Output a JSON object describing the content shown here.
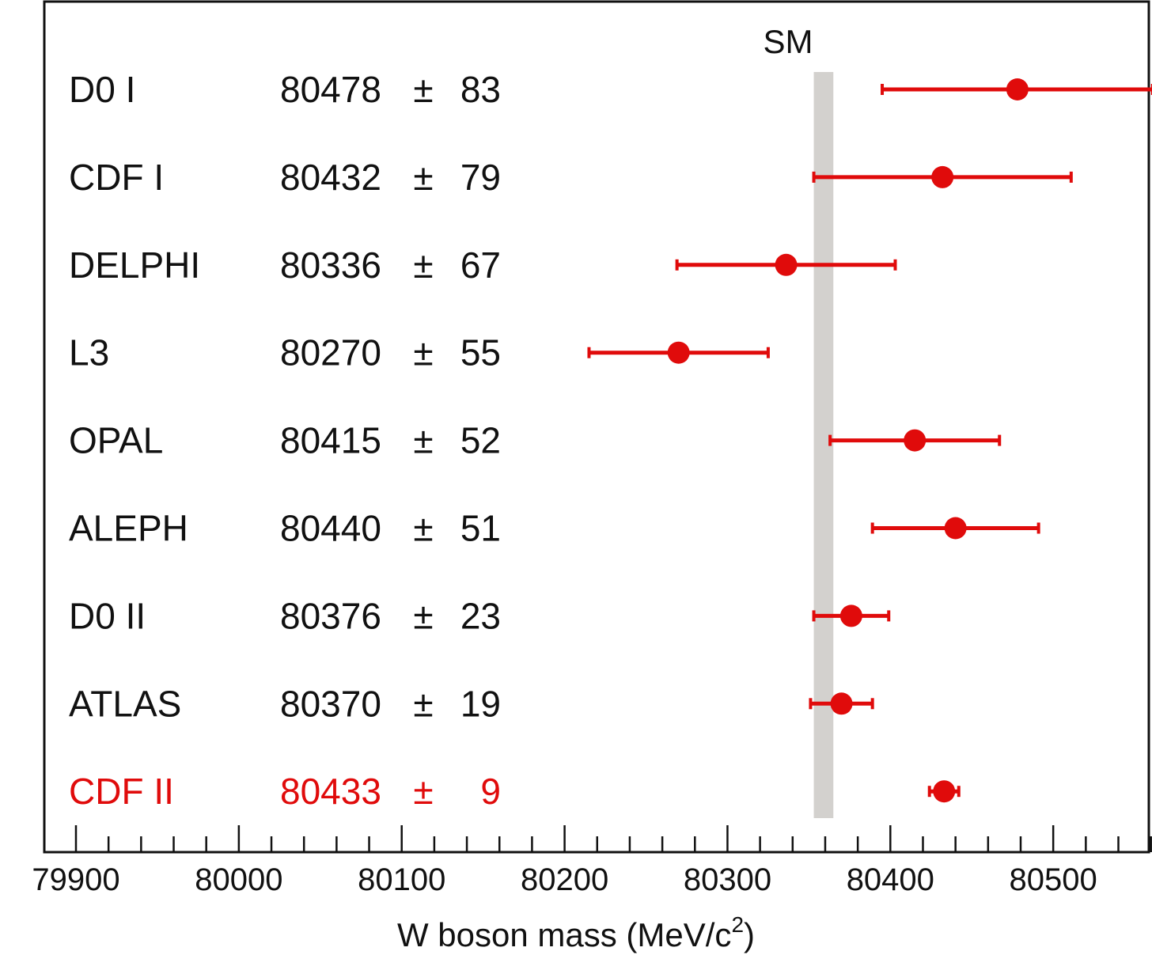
{
  "chart_data": {
    "type": "scatter",
    "xlabel": "W boson mass (MeV/c",
    "xlabel_sup": "2",
    "xlabel_close": ")",
    "xlim": [
      79900,
      80570
    ],
    "xticks": [
      79900,
      80000,
      80100,
      80200,
      80300,
      80400,
      80500
    ],
    "xtick_labels": [
      "79900",
      "80000",
      "80100",
      "80200",
      "80300",
      "80400",
      "80500"
    ],
    "minor_tick_step": 20,
    "sm_band": {
      "label": "SM",
      "min": 80353,
      "max": 80365,
      "color": "#d3d1ce"
    },
    "pm_symbol": "±",
    "grid": false,
    "measurements": [
      {
        "name": "D0 I",
        "mass": 80478,
        "mass_label": "80478",
        "err": 83,
        "err_label": "83",
        "highlight": false
      },
      {
        "name": "CDF I",
        "mass": 80432,
        "mass_label": "80432",
        "err": 79,
        "err_label": "79",
        "highlight": false
      },
      {
        "name": "DELPHI",
        "mass": 80336,
        "mass_label": "80336",
        "err": 67,
        "err_label": "67",
        "highlight": false
      },
      {
        "name": "L3",
        "mass": 80270,
        "mass_label": "80270",
        "err": 55,
        "err_label": "55",
        "highlight": false
      },
      {
        "name": "OPAL",
        "mass": 80415,
        "mass_label": "80415",
        "err": 52,
        "err_label": "52",
        "highlight": false
      },
      {
        "name": "ALEPH",
        "mass": 80440,
        "mass_label": "80440",
        "err": 51,
        "err_label": "51",
        "highlight": false
      },
      {
        "name": "D0 II",
        "mass": 80376,
        "mass_label": "80376",
        "err": 23,
        "err_label": "23",
        "highlight": false
      },
      {
        "name": "ATLAS",
        "mass": 80370,
        "mass_label": "80370",
        "err": 19,
        "err_label": "19",
        "highlight": false
      },
      {
        "name": "CDF II",
        "mass": 80433,
        "mass_label": "80433",
        "err": 9,
        "err_label": "9",
        "highlight": true
      }
    ],
    "colors": {
      "point": "#e00b0b",
      "text": "#111111",
      "highlight_text": "#e00b0b",
      "frame": "#111111"
    }
  }
}
